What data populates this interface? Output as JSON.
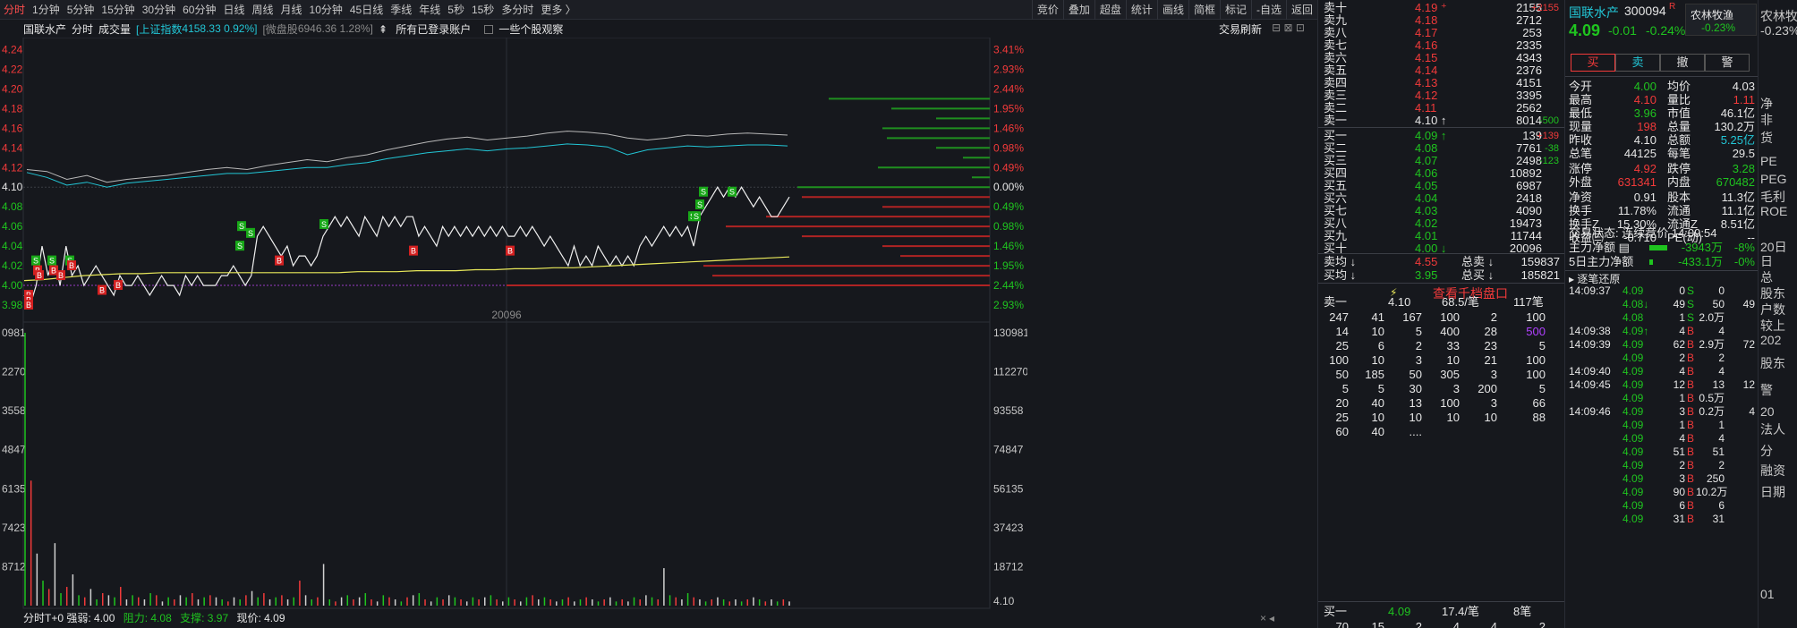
{
  "periods": [
    "分时",
    "1分钟",
    "5分钟",
    "15分钟",
    "30分钟",
    "60分钟",
    "日线",
    "周线",
    "月线",
    "10分钟",
    "45日线",
    "季线",
    "年线",
    "5秒",
    "15秒",
    "多分时",
    "更多 〉"
  ],
  "toolbar_right": [
    "竞价",
    "叠加",
    "超盘",
    "统计",
    "画线",
    "简框",
    "标记",
    "-自选",
    "返回"
  ],
  "info": {
    "name": "国联水产",
    "mode": "分时",
    "vol_label": "成交量",
    "index_label": "[上证指数",
    "index_val": "4158.33 0.92%]",
    "micro_label": "[微盘股",
    "micro_val": "6946.36 1.28%]",
    "account_label": "所有已登录账户",
    "watch_label": "一些个股观察",
    "trade_refresh": "交易刷新"
  },
  "chart_data": {
    "type": "line",
    "price_ticks": [
      "4.24",
      "4.22",
      "4.20",
      "4.18",
      "4.16",
      "4.14",
      "4.12",
      "4.10",
      "4.08",
      "4.06",
      "4.04",
      "4.02",
      "4.00",
      "3.98"
    ],
    "pct_ticks": [
      "3.41%",
      "2.93%",
      "2.44%",
      "1.95%",
      "1.46%",
      "0.98%",
      "0.49%",
      "0.00%",
      "0.49%",
      "0.98%",
      "1.46%",
      "1.95%",
      "2.44%",
      "2.93%"
    ],
    "vol_ticks_left": [
      "0981",
      "2270",
      "3558",
      "4847",
      "6135",
      "7423",
      "8712"
    ],
    "vol_ticks_right": [
      "130981",
      "112270",
      "93558",
      "74847",
      "56135",
      "37423",
      "18712"
    ],
    "prev_close": 4.1,
    "ylim": [
      3.97,
      4.245
    ],
    "mid_label": "20096",
    "series": [
      {
        "values": [
          3.99,
          3.98,
          4.0,
          4.04,
          4.01,
          4.03,
          4.0,
          4.04,
          4.01,
          4.02,
          4.0,
          4.01,
          4.02,
          4.01,
          4.0,
          3.99,
          4.01,
          4.0,
          4.0,
          4.01,
          4.0,
          3.99,
          4.0,
          4.01,
          4.0,
          4.0,
          3.99,
          4.01,
          4.0,
          4.01,
          4.0,
          4.0,
          4.0,
          4.01,
          4.01,
          4.02,
          4.01,
          4.0,
          4.01,
          4.05,
          4.06,
          4.05,
          4.04,
          4.03,
          4.04,
          4.02,
          4.03,
          4.03,
          4.02,
          4.03,
          4.05,
          4.06,
          4.07,
          4.06,
          4.07,
          4.06,
          4.05,
          4.07,
          4.06,
          4.05,
          4.07,
          4.06,
          4.07,
          4.06,
          4.07,
          4.07,
          4.05,
          4.06,
          4.05,
          4.04,
          4.06,
          4.05,
          4.06,
          4.05,
          4.06,
          4.05,
          4.06,
          4.05,
          4.06,
          4.05,
          4.06,
          4.05,
          4.05,
          4.06,
          4.05,
          4.06,
          4.05,
          4.04,
          4.05,
          4.04,
          4.03,
          4.02,
          4.04,
          4.02,
          4.03,
          4.02,
          4.04,
          4.03,
          4.02,
          4.03,
          4.02,
          4.03,
          4.02,
          4.04,
          4.05,
          4.04,
          4.05,
          4.06,
          4.05,
          4.06,
          4.05,
          4.06,
          4.04,
          4.07,
          4.08,
          4.09,
          4.1,
          4.09,
          4.1,
          4.09,
          4.1,
          4.09,
          4.08,
          4.09,
          4.08,
          4.07,
          4.07,
          4.08,
          4.09
        ]
      },
      {
        "values": [
          4.005,
          4.006,
          4.008,
          4.01,
          4.011,
          4.012,
          4.012,
          4.013,
          4.013,
          4.013,
          4.013,
          4.013,
          4.013,
          4.013,
          4.013,
          4.013,
          4.013,
          4.014,
          4.014,
          4.014,
          4.015,
          4.015,
          4.015,
          4.016,
          4.016,
          4.017,
          4.017,
          4.018,
          4.018,
          4.019,
          4.02,
          4.021,
          4.022,
          4.023,
          4.024,
          4.025,
          4.026,
          4.027,
          4.028,
          4.029
        ]
      }
    ],
    "overlay_index": [
      4.118,
      4.116,
      4.108,
      4.112,
      4.105,
      4.108,
      4.11,
      4.112,
      4.115,
      4.118,
      4.12,
      4.118,
      4.122,
      4.125,
      4.128,
      4.126,
      4.13,
      4.133,
      4.138,
      4.142,
      4.146,
      4.149,
      4.151,
      4.148,
      4.15,
      4.152,
      4.155,
      4.157,
      4.156,
      4.154,
      4.15,
      4.148,
      4.15,
      4.153,
      4.152,
      4.154,
      4.155,
      4.154,
      4.153
    ],
    "overlay_micro": [
      4.115,
      4.11,
      4.102,
      4.105,
      4.1,
      4.104,
      4.106,
      4.108,
      4.11,
      4.112,
      4.114,
      4.114,
      4.116,
      4.118,
      4.12,
      4.12,
      4.123,
      4.125,
      4.129,
      4.132,
      4.135,
      4.137,
      4.139,
      4.137,
      4.139,
      4.14,
      4.142,
      4.144,
      4.143,
      4.141,
      4.133,
      4.138,
      4.14,
      4.142,
      4.141,
      4.142,
      4.143,
      4.143,
      4.142
    ],
    "volume": [
      130981,
      60000,
      25000,
      12000,
      8000,
      30000,
      6000,
      9000,
      15000,
      5000,
      4000,
      8000,
      3000,
      6000,
      5000,
      4000,
      9000,
      3000,
      5000,
      4000,
      3000,
      6000,
      5000,
      2000,
      4000,
      3000,
      5000,
      4000,
      6000,
      3000,
      4000,
      5000,
      4000,
      3000,
      2000,
      4000,
      3000,
      5000,
      7000,
      4000,
      6000,
      3000,
      4000,
      5000,
      3000,
      4000,
      12000,
      5000,
      3000,
      4000,
      20000,
      3000,
      2000,
      4000,
      5000,
      3000,
      4000,
      6000,
      3000,
      2000,
      5000,
      4000,
      3000,
      2000,
      4000,
      5000,
      6000,
      3000,
      2000,
      4000,
      3000,
      5000,
      4000,
      3000,
      2000,
      4000,
      3000,
      4000,
      5000,
      3000,
      2000,
      4000,
      3000,
      2000,
      4000,
      5000,
      3000,
      4000,
      3000,
      2000,
      3000,
      4000,
      2000,
      3000,
      4000,
      3000,
      2000,
      3000,
      4000,
      2000,
      3000,
      2000,
      4000,
      3000,
      5000,
      4000,
      3000,
      18000,
      5000,
      4000,
      3000,
      6000,
      4000,
      3000,
      2000,
      3000,
      4000,
      3000,
      2000,
      3000,
      2000,
      3000,
      4000,
      3000,
      2000,
      3000,
      2000,
      3000,
      2000
    ]
  },
  "status": {
    "label": "分时T+0 强弱: 4.00",
    "resist_label": "阻力: 4.08",
    "support_label": "支撑: 3.97",
    "now_label": "现价: 4.09"
  },
  "sells": [
    {
      "label": "卖十",
      "price": "4.19",
      "vol": "2155",
      "chg": "+2155"
    },
    {
      "label": "卖九",
      "price": "4.18",
      "vol": "2712",
      "chg": ""
    },
    {
      "label": "卖八",
      "price": "4.17",
      "vol": "253",
      "chg": ""
    },
    {
      "label": "卖七",
      "price": "4.16",
      "vol": "2335",
      "chg": ""
    },
    {
      "label": "卖六",
      "price": "4.15",
      "vol": "4343",
      "chg": ""
    },
    {
      "label": "卖五",
      "price": "4.14",
      "vol": "2376",
      "chg": ""
    },
    {
      "label": "卖四",
      "price": "4.13",
      "vol": "4151",
      "chg": ""
    },
    {
      "label": "卖三",
      "price": "4.12",
      "vol": "3395",
      "chg": ""
    },
    {
      "label": "卖二",
      "price": "4.11",
      "vol": "2562",
      "chg": ""
    },
    {
      "label": "卖一",
      "price": "4.10",
      "vol": "8014",
      "chg": "-500"
    }
  ],
  "buys": [
    {
      "label": "买一",
      "price": "4.09",
      "vol": "139",
      "chg": "+139"
    },
    {
      "label": "买二",
      "price": "4.08",
      "vol": "7761",
      "chg": "-38"
    },
    {
      "label": "买三",
      "price": "4.07",
      "vol": "2498",
      "chg": "-123"
    },
    {
      "label": "买四",
      "price": "4.06",
      "vol": "10892",
      "chg": ""
    },
    {
      "label": "买五",
      "price": "4.05",
      "vol": "6987",
      "chg": ""
    },
    {
      "label": "买六",
      "price": "4.04",
      "vol": "2418",
      "chg": ""
    },
    {
      "label": "买七",
      "price": "4.03",
      "vol": "4090",
      "chg": ""
    },
    {
      "label": "买八",
      "price": "4.02",
      "vol": "19473",
      "chg": ""
    },
    {
      "label": "买九",
      "price": "4.01",
      "vol": "11744",
      "chg": ""
    },
    {
      "label": "买十",
      "price": "4.00",
      "vol": "20096",
      "chg": ""
    }
  ],
  "book_summary": {
    "sell_avg_label": "卖均",
    "sell_avg": "4.55",
    "total_sell_label": "总卖",
    "total_sell": "159837",
    "buy_avg_label": "买均",
    "buy_avg": "3.95",
    "total_buy_label": "总买",
    "total_buy": "185821",
    "view_link": "查看千档盘口"
  },
  "queue_sell": {
    "label": "卖一",
    "price": "4.10",
    "avg": "68.5/笔",
    "count": "117笔",
    "rows": [
      [
        "247",
        "41",
        "167",
        "100",
        "2",
        "100"
      ],
      [
        "14",
        "10",
        "5",
        "400",
        "28",
        "500"
      ],
      [
        "25",
        "6",
        "2",
        "33",
        "23",
        "5"
      ],
      [
        "100",
        "10",
        "3",
        "10",
        "21",
        "100"
      ],
      [
        "50",
        "185",
        "50",
        "305",
        "3",
        "100"
      ],
      [
        "5",
        "5",
        "30",
        "3",
        "200",
        "5"
      ],
      [
        "20",
        "40",
        "13",
        "100",
        "3",
        "66"
      ],
      [
        "25",
        "10",
        "10",
        "10",
        "10",
        "88"
      ],
      [
        "60",
        "40",
        "....",
        "",
        "",
        ""
      ]
    ]
  },
  "queue_buy": {
    "label": "买一",
    "price": "4.09",
    "avg": "17.4/笔",
    "count": "8笔",
    "rows": [
      [
        "70",
        "15",
        "2",
        "4",
        "4",
        "2"
      ]
    ]
  },
  "quote": {
    "name": "国联水产",
    "code": "300094",
    "flag": "R",
    "tag": "农林牧渔",
    "price": "4.09",
    "chg": "-0.01",
    "pct": "-0.24%",
    "sector_pct": "-0.23%",
    "buy_btn": "买",
    "sell_btn": "卖",
    "cancel_btn": "撤",
    "alert_btn": "警",
    "fields": [
      [
        "今开",
        "4.00",
        "均价",
        "4.03"
      ],
      [
        "最高",
        "4.10",
        "量比",
        "1.11"
      ],
      [
        "最低",
        "3.96",
        "市值",
        "46.1亿"
      ],
      [
        "现量",
        "198",
        "总量",
        "130.2万"
      ],
      [
        "昨收",
        "4.10",
        "总额",
        "5.25亿"
      ],
      [
        "总笔",
        "44125",
        "每笔",
        "29.5"
      ],
      [
        "涨停",
        "4.92",
        "跌停",
        "3.28"
      ],
      [
        "外盘",
        "631341",
        "内盘",
        "670482"
      ],
      [
        "净资",
        "0.91",
        "股本",
        "11.3亿"
      ],
      [
        "换手",
        "11.78%",
        "流通",
        "11.1亿"
      ],
      [
        "换手Z",
        "15.30%",
        "流通Z",
        "8.51亿"
      ],
      [
        "收益㈢",
        "-0.710",
        "PE(动)",
        "--"
      ]
    ],
    "trade_status": "交易状态: 连续竞价 14:09:54",
    "main_flow_label": "主力净额",
    "main_flow": "-3943万",
    "main_flow_pct": "-8%",
    "main5_label": "5日主力净额",
    "main5": "-433.1万",
    "main5_pct": "-0%",
    "ticks_label": "逐笔还原",
    "ticks": [
      [
        "14:09:37",
        "4.09",
        "0",
        "S",
        "0",
        ""
      ],
      [
        "",
        "4.08",
        "49",
        "S",
        "50",
        "49"
      ],
      [
        "",
        "4.08",
        "1",
        "S",
        "2.0万",
        ""
      ],
      [
        "14:09:38",
        "4.09",
        "4",
        "B",
        "4",
        ""
      ],
      [
        "14:09:39",
        "4.09",
        "62",
        "B",
        "2.9万",
        "72"
      ],
      [
        "",
        "4.09",
        "2",
        "B",
        "2",
        ""
      ],
      [
        "14:09:40",
        "4.09",
        "4",
        "B",
        "4",
        ""
      ],
      [
        "14:09:45",
        "4.09",
        "12",
        "B",
        "13",
        "12"
      ],
      [
        "",
        "4.09",
        "1",
        "B",
        "0.5万",
        ""
      ],
      [
        "14:09:46",
        "4.09",
        "3",
        "B",
        "0.2万",
        "4"
      ],
      [
        "",
        "4.09",
        "1",
        "B",
        "1",
        ""
      ],
      [
        "",
        "4.09",
        "4",
        "B",
        "4",
        ""
      ],
      [
        "",
        "4.09",
        "51",
        "B",
        "51",
        ""
      ],
      [
        "",
        "4.09",
        "2",
        "B",
        "2",
        ""
      ],
      [
        "",
        "4.09",
        "3",
        "B",
        "250",
        ""
      ],
      [
        "",
        "4.09",
        "90",
        "B",
        "10.2万",
        ""
      ],
      [
        "",
        "4.09",
        "6",
        "B",
        "6",
        ""
      ],
      [
        "",
        "4.09",
        "31",
        "B",
        "31",
        ""
      ]
    ]
  },
  "cut_panel": [
    "农林牧渔",
    "-0.23%",
    "净",
    "非",
    "货",
    "PE",
    "PEG",
    "毛利",
    "ROE",
    "20日",
    "日",
    "总",
    "股东",
    "户数",
    "较上",
    "202",
    "股东",
    "警",
    "20",
    "法人",
    "分",
    "融资",
    "日期",
    "01"
  ]
}
